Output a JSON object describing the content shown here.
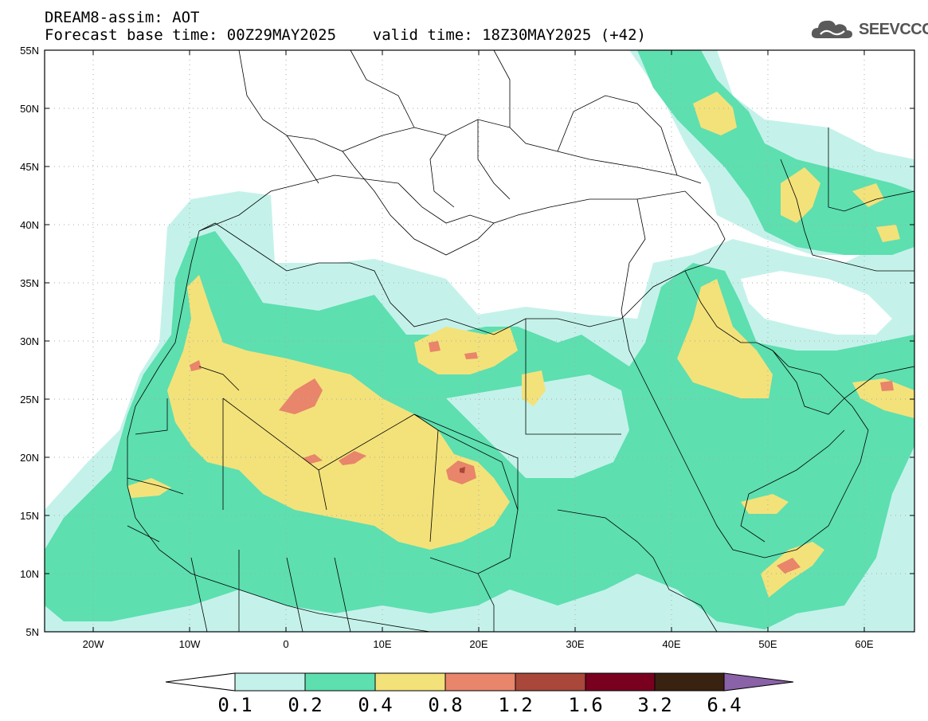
{
  "header": {
    "line1": "DREAM8-assim: AOT",
    "line2": "Forecast base time: 00Z29MAY2025    valid time: 18Z30MAY2025 (+42)"
  },
  "logo": {
    "text": "SEEVCCC",
    "icon": "cloud-icon"
  },
  "axes": {
    "lat_labels": [
      "55N",
      "50N",
      "45N",
      "40N",
      "35N",
      "30N",
      "25N",
      "20N",
      "15N",
      "10N",
      "5N"
    ],
    "lon_labels": [
      "20W",
      "10W",
      "0",
      "10E",
      "20E",
      "30E",
      "40E",
      "50E",
      "60E"
    ]
  },
  "legend": {
    "labels": [
      "0.1",
      "0.2",
      "0.4",
      "0.8",
      "1.2",
      "1.6",
      "3.2",
      "6.4"
    ],
    "colors": [
      "#ffffff",
      "#c4f2ea",
      "#5ddfb0",
      "#f3e27a",
      "#e8856a",
      "#a8473a",
      "#7a0020",
      "#3a2210",
      "#8a62a8"
    ]
  },
  "colors": {
    "frame": "#000000",
    "land_border": "#000000",
    "grid": "#aaaaaa"
  }
}
